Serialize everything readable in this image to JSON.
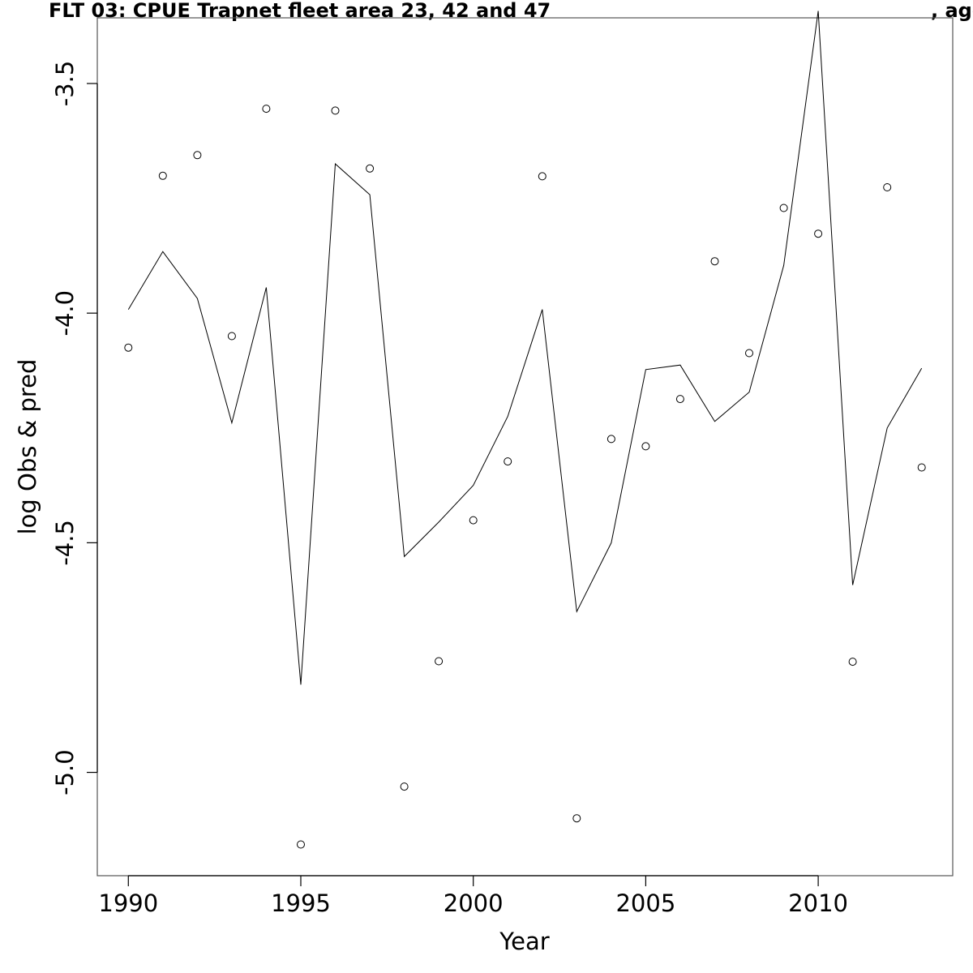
{
  "chart_data": {
    "type": "line",
    "title_left": "FLT 03: CPUE Trapnet fleet area 23, 42 and 47",
    "title_right": ", age",
    "xlabel": "Year",
    "ylabel": "log Obs & pred",
    "xlim": [
      1989.1,
      2013.9
    ],
    "ylim": [
      -5.225,
      -3.357
    ],
    "x_ticks": [
      1990,
      1995,
      2000,
      2005,
      2010
    ],
    "x_tick_labels": [
      "1990",
      "1995",
      "2000",
      "2005",
      "2010"
    ],
    "y_ticks": [
      -5.0,
      -4.5,
      -4.0,
      -3.5
    ],
    "y_tick_labels": [
      "-5.0",
      "-4.5",
      "-4.0",
      "-3.5"
    ],
    "grid": false,
    "x": [
      1990,
      1991,
      1992,
      1993,
      1994,
      1995,
      1996,
      1997,
      1998,
      1999,
      2000,
      2001,
      2002,
      2003,
      2004,
      2005,
      2006,
      2007,
      2008,
      2009,
      2010,
      2011,
      2012,
      2013
    ],
    "series": [
      {
        "kind": "points",
        "values": [
          -4.075,
          -3.701,
          -3.656,
          -4.05,
          -3.555,
          -5.157,
          -3.559,
          -3.685,
          -5.031,
          -4.758,
          -4.451,
          -4.323,
          -3.702,
          -5.1,
          -4.274,
          -4.29,
          -4.187,
          -3.887,
          -4.087,
          -3.771,
          -3.827,
          -4.759,
          -3.726,
          -4.336
        ]
      },
      {
        "kind": "line",
        "values": [
          -3.992,
          -3.866,
          -3.968,
          -4.239,
          -3.944,
          -4.809,
          -3.675,
          -3.742,
          -4.53,
          -4.455,
          -4.375,
          -4.225,
          -3.992,
          -4.65,
          -4.5,
          -4.123,
          -4.113,
          -4.236,
          -4.172,
          -3.896,
          -3.342,
          -4.592,
          -4.25,
          -4.12
        ]
      }
    ]
  }
}
